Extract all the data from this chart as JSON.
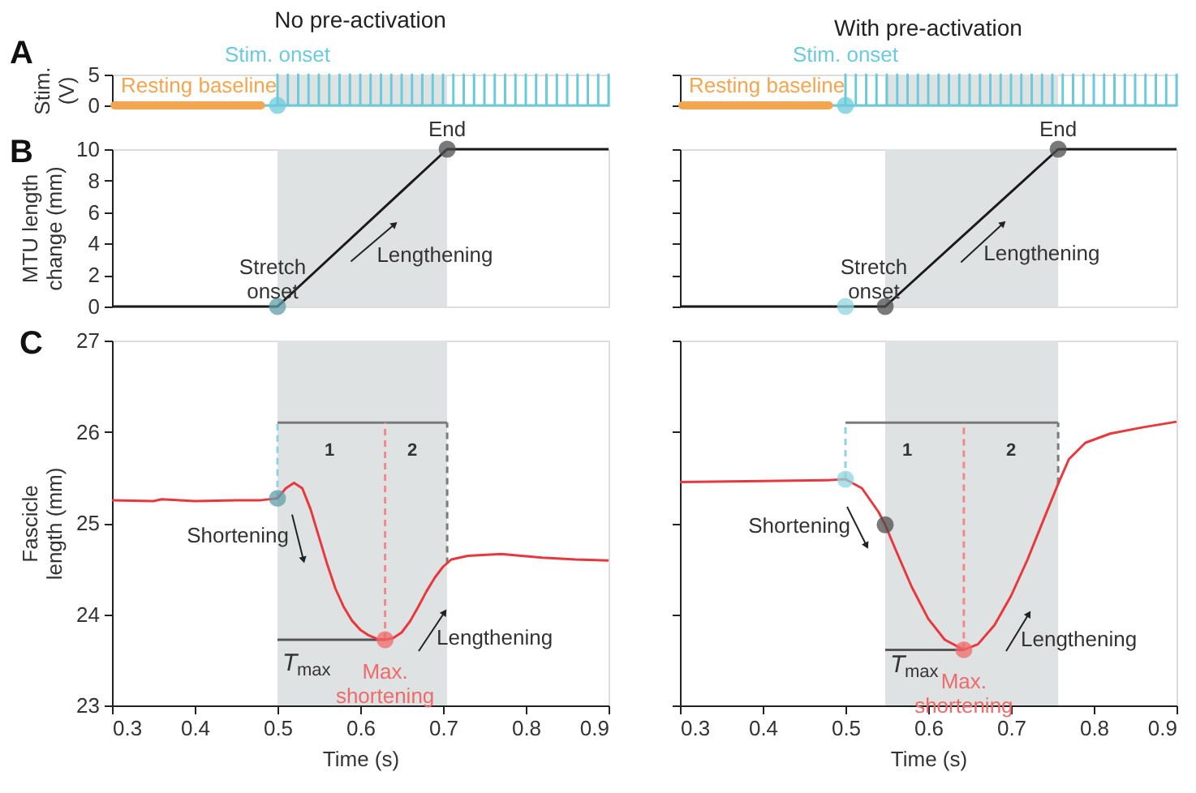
{
  "chart_data": [
    {
      "type": "line",
      "title": "No pre-activation",
      "ylabel": "Stim.\n(V)",
      "xlim": [
        0.3,
        0.9
      ],
      "xticks": [
        0.3,
        0.4,
        0.5,
        0.6,
        0.7,
        0.8,
        0.9
      ],
      "ylim": [
        0,
        5
      ],
      "yticks": [
        0,
        5
      ],
      "tick_labels": "y",
      "annotations": [
        "A"
      ],
      "bands": [
        {
          "axis": "x",
          "from": 0.5,
          "to": 0.705,
          "color": "#dfe2e3"
        }
      ],
      "series": [
        {
          "color": "#6ccbdb",
          "x": [
            0.3,
            0.5,
            0.5,
            0.5,
            0.5125,
            0.5125,
            0.5125,
            0.525,
            0.525,
            0.525,
            0.5375,
            0.5375,
            0.5375,
            0.55,
            0.55,
            0.55,
            0.5625,
            0.5625,
            0.5625,
            0.575,
            0.575,
            0.575,
            0.5875,
            0.5875,
            0.5875,
            0.6,
            0.6,
            0.6,
            0.6125,
            0.6125,
            0.6125,
            0.625,
            0.625,
            0.625,
            0.6375,
            0.6375,
            0.6375,
            0.65,
            0.65,
            0.65,
            0.6625,
            0.6625,
            0.6625,
            0.675,
            0.675,
            0.675,
            0.6875,
            0.6875,
            0.6875,
            0.7,
            0.7,
            0.7,
            0.7125,
            0.7125,
            0.7125,
            0.725,
            0.725,
            0.725,
            0.7375,
            0.7375,
            0.7375,
            0.75,
            0.75,
            0.75,
            0.7625,
            0.7625,
            0.7625,
            0.775,
            0.775,
            0.775,
            0.7875,
            0.7875,
            0.7875,
            0.8,
            0.8,
            0.8,
            0.8125,
            0.8125,
            0.8125,
            0.825,
            0.825,
            0.825,
            0.8375,
            0.8375,
            0.8375,
            0.85,
            0.85,
            0.85,
            0.8625,
            0.8625,
            0.8625,
            0.875,
            0.875,
            0.875,
            0.8875,
            0.8875,
            0.8875,
            0.9,
            0.9,
            0.9
          ],
          "values": [
            0,
            0,
            5,
            0,
            0,
            5,
            0,
            0,
            5,
            0,
            0,
            5,
            0,
            0,
            5,
            0,
            0,
            5,
            0,
            0,
            5,
            0,
            0,
            5,
            0,
            0,
            5,
            0,
            0,
            5,
            0,
            0,
            5,
            0,
            0,
            5,
            0,
            0,
            5,
            0,
            0,
            5,
            0,
            0,
            5,
            0,
            0,
            5,
            0,
            0,
            5,
            0,
            0,
            5,
            0,
            0,
            5,
            0,
            0,
            5,
            0,
            0,
            5,
            0,
            0,
            5,
            0,
            0,
            5,
            0,
            0,
            5,
            0,
            0,
            5,
            0,
            0,
            5,
            0,
            0,
            5,
            0,
            0,
            5,
            0,
            0,
            5,
            0,
            0,
            5,
            0,
            0,
            5,
            0,
            0,
            5,
            0,
            0,
            5,
            0
          ]
        },
        {
          "name": "Resting baseline",
          "color": "#f5a54e",
          "x": [
            0.303,
            0.48
          ],
          "values": [
            0,
            0
          ]
        },
        {
          "name": "Stim. onset",
          "type": "scatter",
          "color": "#6ccbdb",
          "x": [
            0.5
          ],
          "values": [
            0
          ]
        }
      ]
    },
    {
      "type": "line",
      "title": "With pre-activation",
      "xlim": [
        0.3,
        0.9
      ],
      "xticks": [
        0.3,
        0.4,
        0.5,
        0.6,
        0.7,
        0.8,
        0.9
      ],
      "ylim": [
        0,
        5
      ],
      "yticks": [
        0,
        5
      ],
      "tick_labels": false,
      "bands": [
        {
          "axis": "x",
          "from": 0.548,
          "to": 0.757,
          "color": "#dfe2e3"
        }
      ],
      "series": [
        {
          "color": "#6ccbdb",
          "x": [
            0.3,
            0.5,
            0.5,
            0.5,
            0.5125,
            0.5125,
            0.5125,
            0.525,
            0.525,
            0.525,
            0.5375,
            0.5375,
            0.5375,
            0.55,
            0.55,
            0.55,
            0.5625,
            0.5625,
            0.5625,
            0.575,
            0.575,
            0.575,
            0.5875,
            0.5875,
            0.5875,
            0.6,
            0.6,
            0.6,
            0.6125,
            0.6125,
            0.6125,
            0.625,
            0.625,
            0.625,
            0.6375,
            0.6375,
            0.6375,
            0.65,
            0.65,
            0.65,
            0.6625,
            0.6625,
            0.6625,
            0.675,
            0.675,
            0.675,
            0.6875,
            0.6875,
            0.6875,
            0.7,
            0.7,
            0.7,
            0.7125,
            0.7125,
            0.7125,
            0.725,
            0.725,
            0.725,
            0.7375,
            0.7375,
            0.7375,
            0.75,
            0.75,
            0.75,
            0.7625,
            0.7625,
            0.7625,
            0.775,
            0.775,
            0.775,
            0.7875,
            0.7875,
            0.7875,
            0.8,
            0.8,
            0.8,
            0.8125,
            0.8125,
            0.8125,
            0.825,
            0.825,
            0.825,
            0.8375,
            0.8375,
            0.8375,
            0.85,
            0.85,
            0.85,
            0.8625,
            0.8625,
            0.8625,
            0.875,
            0.875,
            0.875,
            0.8875,
            0.8875,
            0.8875,
            0.9,
            0.9,
            0.9
          ],
          "values": [
            0,
            0,
            5,
            0,
            0,
            5,
            0,
            0,
            5,
            0,
            0,
            5,
            0,
            0,
            5,
            0,
            0,
            5,
            0,
            0,
            5,
            0,
            0,
            5,
            0,
            0,
            5,
            0,
            0,
            5,
            0,
            0,
            5,
            0,
            0,
            5,
            0,
            0,
            5,
            0,
            0,
            5,
            0,
            0,
            5,
            0,
            0,
            5,
            0,
            0,
            5,
            0,
            0,
            5,
            0,
            0,
            5,
            0,
            0,
            5,
            0,
            0,
            5,
            0,
            0,
            5,
            0,
            0,
            5,
            0,
            0,
            5,
            0,
            0,
            5,
            0,
            0,
            5,
            0,
            0,
            5,
            0,
            0,
            5,
            0,
            0,
            5,
            0,
            0,
            5,
            0,
            0,
            5,
            0,
            0,
            5,
            0,
            0,
            5,
            0
          ]
        },
        {
          "name": "Resting baseline",
          "color": "#f5a54e",
          "x": [
            0.303,
            0.48
          ],
          "values": [
            0,
            0
          ]
        },
        {
          "name": "Stim. onset",
          "type": "scatter",
          "color": "#6ccbdb",
          "x": [
            0.5
          ],
          "values": [
            0
          ]
        }
      ]
    },
    {
      "type": "line",
      "ylabel": "MTU length\nchange (mm)",
      "xlim": [
        0.3,
        0.9
      ],
      "xticks": [
        0.3,
        0.4,
        0.5,
        0.6,
        0.7,
        0.8,
        0.9
      ],
      "ylim": [
        0,
        10
      ],
      "yticks": [
        0,
        2,
        4,
        6,
        8,
        10
      ],
      "tick_labels": "y",
      "annotations": [
        "B",
        {
          "text": "Stretch\nonset",
          "x": 0.5,
          "y": 0
        },
        {
          "text": "End",
          "x": 0.705,
          "y": 10
        },
        {
          "text": "Lengthening",
          "x": 0.62,
          "y": 5.85
        }
      ],
      "bands": [
        {
          "axis": "x",
          "from": 0.5,
          "to": 0.705,
          "color": "#dfe2e3"
        }
      ],
      "series": [
        {
          "color": "#1a1a1a",
          "x": [
            0.3,
            0.5,
            0.705,
            0.9
          ],
          "values": [
            0,
            0,
            10,
            10
          ]
        },
        {
          "type": "scatter",
          "color": "#5f9ea8",
          "x": [
            0.5
          ],
          "values": [
            0
          ]
        },
        {
          "type": "scatter",
          "color": "#4d4d4d",
          "x": [
            0.705
          ],
          "values": [
            10
          ]
        }
      ]
    },
    {
      "type": "line",
      "xlim": [
        0.3,
        0.9
      ],
      "xticks": [
        0.3,
        0.4,
        0.5,
        0.6,
        0.7,
        0.8,
        0.9
      ],
      "ylim": [
        0,
        10
      ],
      "yticks": [
        0,
        2,
        4,
        6,
        8,
        10
      ],
      "tick_labels": false,
      "annotations": [
        {
          "text": "Stretch\nonset",
          "x": 0.548,
          "y": 0
        },
        {
          "text": "End",
          "x": 0.757,
          "y": 10
        },
        {
          "text": "Lengthening",
          "x": 0.667,
          "y": 5.7
        }
      ],
      "bands": [
        {
          "axis": "x",
          "from": 0.548,
          "to": 0.757,
          "color": "#dfe2e3"
        }
      ],
      "series": [
        {
          "color": "#1a1a1a",
          "x": [
            0.3,
            0.548,
            0.757,
            0.9
          ],
          "values": [
            0,
            0,
            10,
            10
          ]
        },
        {
          "type": "scatter",
          "color": "#8fd6e0",
          "x": [
            0.5
          ],
          "values": [
            0
          ]
        },
        {
          "type": "scatter",
          "color": "#4d4d4d",
          "x": [
            0.548
          ],
          "values": [
            0
          ]
        },
        {
          "type": "scatter",
          "color": "#4d4d4d",
          "x": [
            0.757
          ],
          "values": [
            10
          ]
        }
      ]
    },
    {
      "type": "line",
      "ylabel": "Fascicle\nlength (mm)",
      "xlabel": "Time (s)",
      "xlim": [
        0.3,
        0.9
      ],
      "xticks": [
        0.3,
        0.4,
        0.5,
        0.6,
        0.7,
        0.8,
        0.9
      ],
      "ylim": [
        23,
        27
      ],
      "yticks": [
        23,
        24,
        25,
        26,
        27
      ],
      "annotations": [
        "C",
        {
          "text": "Shortening",
          "x": 0.5,
          "y": 25.27
        },
        {
          "text": "Lengthening",
          "x": 0.7,
          "y": 24.52
        },
        {
          "text": "T$_{max}$",
          "x": 0.5,
          "y": 23.72
        },
        "1",
        "2"
      ],
      "bands": [
        {
          "axis": "x",
          "from": 0.5,
          "to": 0.705,
          "color": "#dfe2e3"
        }
      ],
      "series": [
        {
          "color": "#7b7b7b",
          "x": [
            0.5,
            0.63,
            0.705
          ],
          "values": [
            26.1,
            26.1,
            26.1
          ]
        },
        {
          "color": "#8fd3e0",
          "line_style": "dashed",
          "x": [
            0.5,
            0.5
          ],
          "values": [
            25.27,
            26.1
          ]
        },
        {
          "color": "#f08a8a",
          "line_style": "dashed",
          "x": [
            0.63,
            0.63
          ],
          "values": [
            23.72,
            26.1
          ]
        },
        {
          "color": "#7b7b7b",
          "line_style": "dashed",
          "x": [
            0.705,
            0.705
          ],
          "values": [
            24.55,
            26.1
          ]
        },
        {
          "color": "#555555",
          "x": [
            0.5,
            0.63
          ],
          "values": [
            23.72,
            23.72
          ]
        },
        {
          "color": "#e8383d",
          "x": [
            0.3,
            0.35,
            0.36,
            0.4,
            0.45,
            0.48,
            0.5,
            0.51,
            0.52,
            0.53,
            0.54,
            0.55,
            0.56,
            0.57,
            0.58,
            0.59,
            0.6,
            0.61,
            0.62,
            0.63,
            0.64,
            0.65,
            0.66,
            0.67,
            0.68,
            0.69,
            0.7,
            0.71,
            0.73,
            0.77,
            0.82,
            0.86,
            0.9
          ],
          "values": [
            25.25,
            25.24,
            25.26,
            25.24,
            25.25,
            25.25,
            25.27,
            25.38,
            25.44,
            25.38,
            25.15,
            24.85,
            24.55,
            24.28,
            24.08,
            23.93,
            23.83,
            23.77,
            23.73,
            23.72,
            23.74,
            23.8,
            23.92,
            24.08,
            24.25,
            24.4,
            24.52,
            24.6,
            24.64,
            24.66,
            24.62,
            24.6,
            24.59
          ]
        },
        {
          "type": "scatter",
          "color": "#5f9ea8",
          "x": [
            0.5
          ],
          "values": [
            25.27
          ]
        },
        {
          "name": "Max.\nshortening",
          "type": "scatter",
          "color": "#f06a6a",
          "x": [
            0.63
          ],
          "values": [
            23.72
          ]
        }
      ]
    },
    {
      "type": "line",
      "xlabel": "Time (s)",
      "xlim": [
        0.3,
        0.9
      ],
      "xticks": [
        0.3,
        0.4,
        0.5,
        0.6,
        0.7,
        0.8,
        0.9
      ],
      "ylim": [
        23,
        27
      ],
      "yticks": [
        23,
        24,
        25,
        26,
        27
      ],
      "tick_labels": "x",
      "annotations": [
        {
          "text": "Shortening",
          "x": 0.5,
          "y": 25.48
        },
        {
          "text": "Lengthening",
          "x": 0.7,
          "y": 24.2
        },
        {
          "text": "T$_{max}$",
          "x": 0.548,
          "y": 23.61
        },
        "1",
        "2"
      ],
      "bands": [
        {
          "axis": "x",
          "from": 0.548,
          "to": 0.757,
          "color": "#dfe2e3"
        }
      ],
      "series": [
        {
          "color": "#7b7b7b",
          "x": [
            0.5,
            0.643,
            0.757
          ],
          "values": [
            26.1,
            26.1,
            26.1
          ]
        },
        {
          "color": "#8fd3e0",
          "line_style": "dashed",
          "x": [
            0.5,
            0.5
          ],
          "values": [
            25.48,
            26.1
          ]
        },
        {
          "color": "#f08a8a",
          "line_style": "dashed",
          "x": [
            0.643,
            0.643
          ],
          "values": [
            23.61,
            26.1
          ]
        },
        {
          "color": "#7b7b7b",
          "line_style": "dashed",
          "x": [
            0.757,
            0.757
          ],
          "values": [
            25.43,
            26.1
          ]
        },
        {
          "color": "#555555",
          "x": [
            0.548,
            0.643
          ],
          "values": [
            23.61,
            23.61
          ]
        },
        {
          "color": "#e8383d",
          "x": [
            0.3,
            0.4,
            0.48,
            0.5,
            0.52,
            0.54,
            0.548,
            0.56,
            0.58,
            0.6,
            0.62,
            0.643,
            0.66,
            0.68,
            0.7,
            0.72,
            0.74,
            0.757,
            0.77,
            0.79,
            0.82,
            0.86,
            0.9
          ],
          "values": [
            25.45,
            25.46,
            25.47,
            25.48,
            25.38,
            25.12,
            24.98,
            24.72,
            24.3,
            23.95,
            23.72,
            23.61,
            23.67,
            23.88,
            24.2,
            24.6,
            25.05,
            25.43,
            25.7,
            25.88,
            25.98,
            26.05,
            26.11
          ]
        },
        {
          "type": "scatter",
          "color": "#8fd6e0",
          "x": [
            0.5
          ],
          "values": [
            25.48
          ]
        },
        {
          "type": "scatter",
          "color": "#4d4d4d",
          "x": [
            0.548
          ],
          "values": [
            24.98
          ]
        },
        {
          "name": "Max.\nshortening",
          "type": "scatter",
          "color": "#f06a6a",
          "x": [
            0.643
          ],
          "values": [
            23.61
          ]
        }
      ]
    }
  ]
}
